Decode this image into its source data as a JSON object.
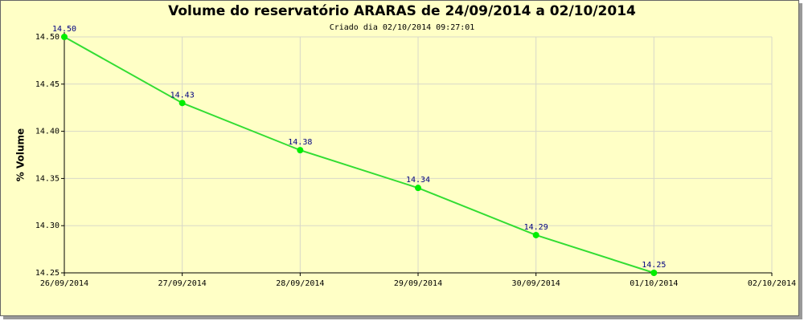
{
  "chart_data": {
    "type": "line",
    "title": "Volume do reservatório ARARAS de 24/09/2014 a 02/10/2014",
    "subtitle": "Criado dia 02/10/2014  09:27:01",
    "y_label": "% Volume",
    "categories": [
      "26/09/2014",
      "27/09/2014",
      "28/09/2014",
      "29/09/2014",
      "30/09/2014",
      "01/10/2014",
      "02/10/2014"
    ],
    "series": [
      {
        "name": "ARARAS",
        "color": "#33dd33",
        "values": [
          14.5,
          14.43,
          14.38,
          14.34,
          14.29,
          14.25,
          null
        ],
        "value_labels": [
          "14.50",
          "14.43",
          "14.38",
          "14.34",
          "14.29",
          "14.25",
          null
        ]
      }
    ],
    "ylim": [
      14.25,
      14.5
    ],
    "yticks": [
      {
        "value": 14.25,
        "label": "14.25"
      },
      {
        "value": 14.3,
        "label": "14.30"
      },
      {
        "value": 14.35,
        "label": "14.35"
      },
      {
        "value": 14.4,
        "label": "14.40"
      },
      {
        "value": 14.45,
        "label": "14.45"
      },
      {
        "value": 14.5,
        "label": "14.50"
      }
    ],
    "grid": true
  }
}
